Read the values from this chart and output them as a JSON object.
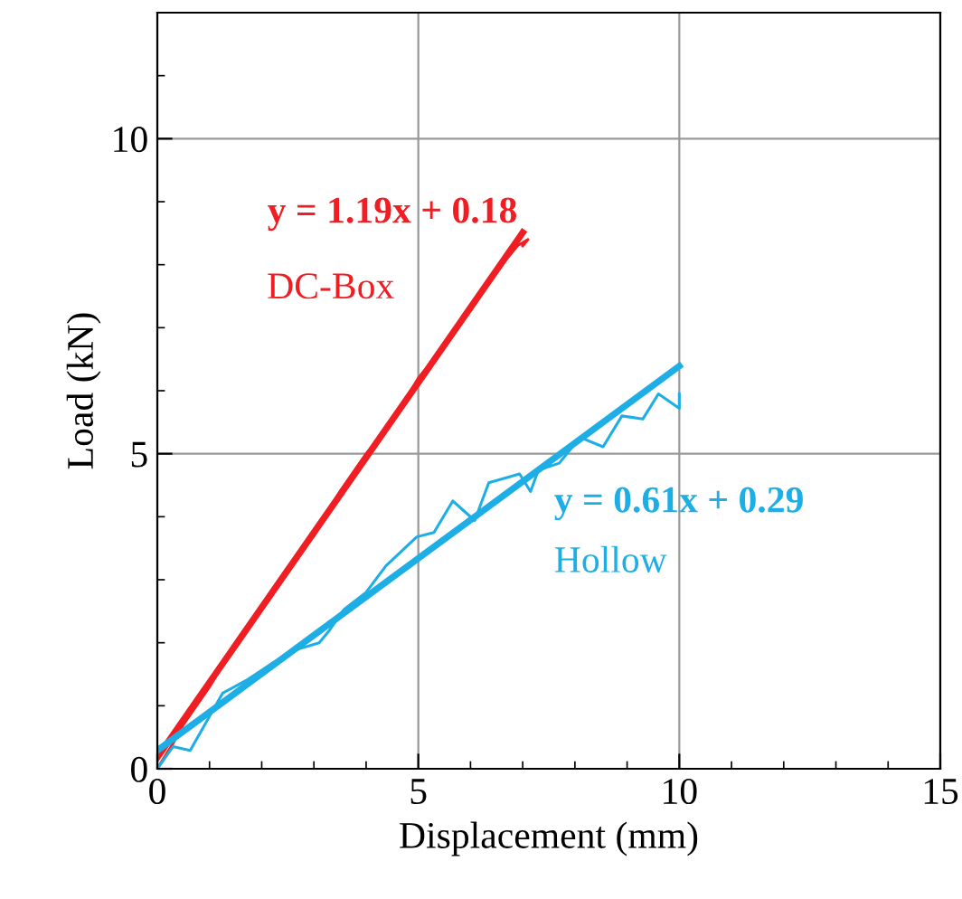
{
  "chart_data": {
    "type": "line",
    "xlabel": "Displacement (mm)",
    "ylabel": "Load (kN)",
    "xlim": [
      0,
      15
    ],
    "xticks": [
      0,
      5,
      10,
      15
    ],
    "ylim": [
      0,
      12
    ],
    "yticks": [
      0,
      5,
      10
    ],
    "grid": true,
    "legend": false,
    "marker": "none",
    "line_style": "solid",
    "series": [
      {
        "name": "DC-Box",
        "color": "#f01e23",
        "x": [
          0,
          0.3,
          0.5,
          1,
          1.5,
          2,
          2.5,
          3,
          3.5,
          4,
          4.5,
          5,
          5.5,
          6,
          6.5,
          6.9,
          7.1,
          7.0
        ],
        "values": [
          0,
          0.4,
          0.7,
          1.3,
          2.0,
          2.6,
          3.2,
          3.7,
          4.4,
          5.0,
          5.5,
          6.2,
          6.7,
          7.3,
          7.9,
          8.3,
          8.4,
          8.3
        ]
      },
      {
        "name": "Hollow",
        "color": "#1eaee6",
        "x": [
          0,
          0.3,
          0.63,
          1.25,
          1.7,
          2.19,
          2.7,
          3.1,
          3.3,
          3.58,
          4.0,
          4.38,
          4.97,
          5.3,
          5.66,
          6.08,
          6.35,
          6.94,
          7.15,
          7.3,
          7.7,
          8.1,
          8.54,
          8.9,
          9.3,
          9.6,
          10.0,
          10.0
        ],
        "values": [
          0,
          0.35,
          0.29,
          1.2,
          1.4,
          1.67,
          1.9,
          2.0,
          2.2,
          2.53,
          2.8,
          3.22,
          3.68,
          3.75,
          4.25,
          3.94,
          4.54,
          4.68,
          4.4,
          4.74,
          4.85,
          5.26,
          5.11,
          5.6,
          5.55,
          5.95,
          5.72,
          5.95
        ]
      },
      {
        "name": "y = 1.19x + 0.18",
        "color": "#f01e23",
        "x": [
          0,
          7
        ],
        "values": [
          0.18,
          8.51
        ]
      },
      {
        "name": "y = 0.61x + 0.29",
        "color": "#1eaee6",
        "x": [
          0,
          10
        ],
        "values": [
          0.29,
          6.39
        ]
      }
    ]
  }
}
